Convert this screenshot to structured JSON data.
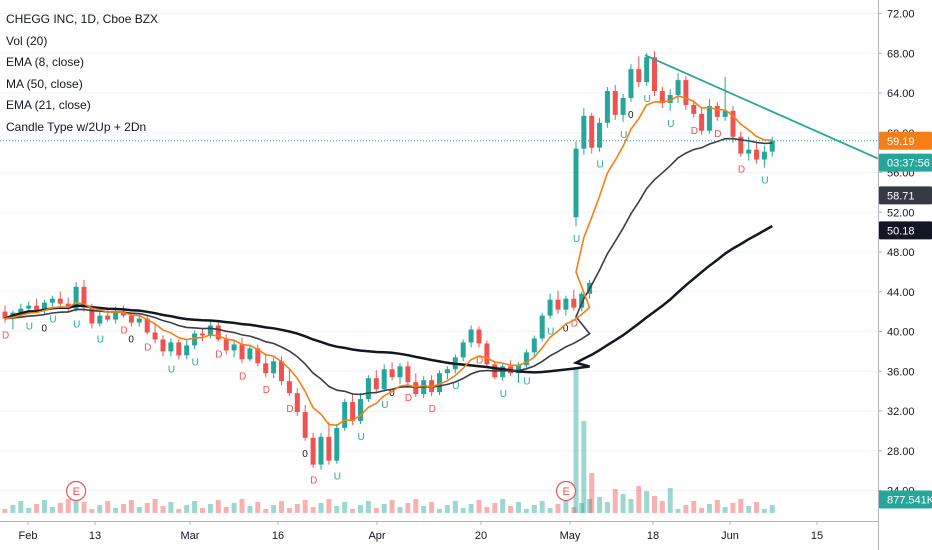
{
  "legend": {
    "symbol": "CHEGG INC, 1D, Cboe BZX",
    "vol": "Vol (20)",
    "ema8": "EMA (8, close)",
    "ma50": "MA (50, close)",
    "ema21": "EMA (21, close)",
    "candle_type": "Candle Type w/2Up + 2Dn"
  },
  "chart_data": {
    "type": "candlestick",
    "title": "CHEGG INC, 1D, Cboe BZX",
    "y_ticks": [
      "72.00",
      "68.00",
      "64.00",
      "60.00",
      "56.00",
      "52.00",
      "48.00",
      "44.00",
      "40.00",
      "36.00",
      "32.00",
      "28.00",
      "24.00"
    ],
    "ylim": [
      22.5,
      73.5
    ],
    "x_labels": [
      "Feb",
      "13",
      "Mar",
      "16",
      "Apr",
      "20",
      "May",
      "18",
      "Jun",
      "15"
    ],
    "price_tags": [
      {
        "label": "59.19",
        "value": 59.19,
        "color": "#f57f17",
        "text_color": "#ffffff"
      },
      {
        "label": "03:37:56",
        "value": 57.0,
        "color": "#26a69a",
        "text_color": "#ffffff"
      },
      {
        "label": "58.71",
        "value": 53.7,
        "color": "#363a45",
        "text_color": "#ffffff"
      },
      {
        "label": "50.18",
        "value": 50.18,
        "color": "#131722",
        "text_color": "#ffffff"
      },
      {
        "label": "877.541K",
        "value": 23.1,
        "color": "#26a69a",
        "text_color": "#ffffff"
      }
    ],
    "earnings_markers": [
      "E",
      "E"
    ],
    "candle_labels": [
      "U",
      "D",
      "0"
    ],
    "ohlc": [
      [
        42.0,
        42.6,
        40.9,
        41.3
      ],
      [
        41.3,
        42.1,
        40.2,
        41.9
      ],
      [
        41.9,
        42.8,
        41.5,
        42.3
      ],
      [
        42.3,
        43.0,
        41.8,
        42.6
      ],
      [
        42.6,
        43.3,
        42.0,
        42.1
      ],
      [
        42.1,
        43.2,
        41.6,
        42.9
      ],
      [
        42.9,
        43.6,
        42.5,
        43.3
      ],
      [
        43.3,
        44.0,
        42.6,
        42.8
      ],
      [
        42.8,
        43.4,
        41.9,
        42.3
      ],
      [
        42.3,
        45.0,
        42.0,
        44.5
      ],
      [
        44.5,
        45.2,
        42.0,
        42.4
      ],
      [
        42.4,
        42.8,
        40.3,
        40.8
      ],
      [
        40.8,
        42.0,
        40.5,
        41.6
      ],
      [
        41.6,
        42.3,
        41.0,
        41.2
      ],
      [
        41.2,
        42.5,
        40.8,
        42.0
      ],
      [
        42.0,
        42.6,
        41.4,
        41.6
      ],
      [
        41.6,
        41.9,
        40.5,
        40.9
      ],
      [
        40.9,
        41.7,
        40.5,
        41.3
      ],
      [
        41.3,
        41.6,
        39.7,
        39.9
      ],
      [
        39.9,
        40.7,
        38.8,
        39.2
      ],
      [
        39.2,
        39.6,
        37.5,
        38.0
      ],
      [
        38.0,
        39.3,
        37.5,
        38.9
      ],
      [
        38.9,
        39.2,
        37.2,
        37.6
      ],
      [
        37.6,
        39.2,
        37.2,
        38.6
      ],
      [
        38.6,
        40.1,
        38.2,
        39.8
      ],
      [
        39.8,
        40.3,
        39.0,
        39.6
      ],
      [
        39.6,
        41.0,
        39.3,
        40.6
      ],
      [
        40.6,
        40.9,
        39.0,
        39.2
      ],
      [
        39.2,
        39.7,
        37.7,
        38.1
      ],
      [
        38.1,
        39.1,
        37.4,
        38.7
      ],
      [
        38.7,
        39.4,
        36.8,
        37.2
      ],
      [
        37.2,
        38.6,
        37.0,
        38.3
      ],
      [
        38.3,
        38.7,
        36.5,
        36.8
      ],
      [
        36.8,
        37.8,
        35.4,
        35.8
      ],
      [
        35.8,
        37.4,
        35.3,
        37.0
      ],
      [
        37.0,
        37.5,
        34.6,
        35.0
      ],
      [
        35.0,
        36.2,
        33.5,
        33.8
      ],
      [
        33.8,
        34.3,
        31.5,
        31.9
      ],
      [
        31.9,
        32.6,
        29.0,
        29.3
      ],
      [
        29.3,
        29.8,
        26.3,
        26.6
      ],
      [
        26.6,
        29.8,
        26.1,
        29.4
      ],
      [
        29.4,
        30.9,
        26.6,
        27.0
      ],
      [
        27.0,
        30.7,
        26.7,
        30.3
      ],
      [
        30.3,
        33.2,
        30.0,
        32.9
      ],
      [
        32.9,
        33.8,
        30.6,
        31.0
      ],
      [
        31.0,
        33.8,
        30.7,
        33.2
      ],
      [
        33.2,
        35.6,
        32.9,
        35.3
      ],
      [
        35.3,
        36.1,
        33.8,
        34.2
      ],
      [
        34.2,
        36.7,
        33.9,
        36.2
      ],
      [
        36.2,
        36.9,
        35.1,
        35.4
      ],
      [
        35.4,
        36.8,
        34.7,
        36.5
      ],
      [
        36.5,
        37.0,
        34.6,
        34.9
      ],
      [
        34.9,
        35.8,
        33.4,
        33.7
      ],
      [
        33.7,
        35.5,
        33.3,
        35.1
      ],
      [
        35.1,
        35.6,
        33.5,
        33.9
      ],
      [
        33.9,
        36.1,
        33.6,
        35.8
      ],
      [
        35.8,
        36.5,
        35.2,
        36.2
      ],
      [
        36.2,
        37.7,
        35.8,
        37.4
      ],
      [
        37.4,
        39.2,
        37.0,
        38.9
      ],
      [
        38.9,
        40.6,
        38.4,
        40.2
      ],
      [
        40.2,
        40.5,
        38.4,
        38.8
      ],
      [
        38.8,
        39.1,
        36.4,
        36.7
      ],
      [
        36.7,
        37.0,
        35.2,
        35.4
      ],
      [
        35.4,
        36.8,
        35.0,
        36.5
      ],
      [
        36.5,
        37.1,
        35.5,
        35.8
      ],
      [
        35.8,
        36.9,
        34.8,
        36.6
      ],
      [
        36.6,
        38.2,
        36.3,
        37.9
      ],
      [
        37.9,
        39.6,
        37.5,
        39.3
      ],
      [
        39.3,
        41.9,
        39.0,
        41.6
      ],
      [
        41.6,
        43.8,
        41.3,
        43.2
      ],
      [
        43.2,
        44.1,
        41.8,
        42.2
      ],
      [
        42.2,
        43.6,
        41.6,
        43.3
      ],
      [
        43.3,
        44.2,
        42.1,
        42.4
      ],
      [
        42.4,
        44.0,
        42.0,
        43.8
      ],
      [
        43.8,
        45.2,
        43.3,
        44.9
      ],
      [
        51.5,
        59.1,
        50.6,
        58.4
      ],
      [
        58.4,
        62.5,
        57.8,
        61.7
      ],
      [
        61.7,
        62.0,
        57.9,
        58.5
      ],
      [
        58.5,
        61.5,
        58.1,
        61.0
      ],
      [
        61.0,
        64.6,
        60.5,
        64.2
      ],
      [
        64.2,
        64.8,
        61.3,
        61.8
      ],
      [
        61.8,
        63.9,
        61.1,
        63.5
      ],
      [
        63.5,
        66.9,
        63.1,
        66.4
      ],
      [
        66.4,
        67.7,
        64.6,
        65.1
      ],
      [
        65.1,
        68.0,
        64.7,
        67.6
      ],
      [
        67.6,
        68.2,
        63.7,
        64.2
      ],
      [
        64.2,
        64.6,
        62.5,
        63.0
      ],
      [
        63.0,
        64.4,
        62.2,
        63.8
      ],
      [
        63.8,
        66.0,
        63.0,
        65.3
      ],
      [
        65.3,
        65.7,
        62.3,
        62.8
      ],
      [
        62.8,
        63.3,
        61.5,
        61.9
      ],
      [
        61.9,
        62.5,
        59.8,
        60.2
      ],
      [
        60.2,
        63.4,
        59.9,
        62.7
      ],
      [
        62.7,
        63.1,
        61.2,
        61.6
      ],
      [
        61.6,
        65.6,
        61.2,
        62.2
      ],
      [
        62.2,
        62.7,
        59.0,
        59.6
      ],
      [
        59.6,
        60.1,
        57.6,
        57.9
      ],
      [
        57.9,
        59.6,
        57.2,
        58.3
      ],
      [
        58.3,
        59.0,
        56.9,
        57.3
      ],
      [
        57.3,
        58.7,
        56.5,
        58.1
      ],
      [
        58.1,
        59.6,
        57.6,
        59.2
      ]
    ]
  },
  "colors": {
    "up": "#26a69a",
    "down": "#ef5350",
    "up_label": "#26a69a",
    "down_label": "#ef5350",
    "ema8": "#f57f17",
    "ma50": "#131722",
    "ema21": "#3a3e4a",
    "trendline": "#26a69a",
    "volume_up": "#26a69a",
    "volume_down": "#ef5350"
  }
}
